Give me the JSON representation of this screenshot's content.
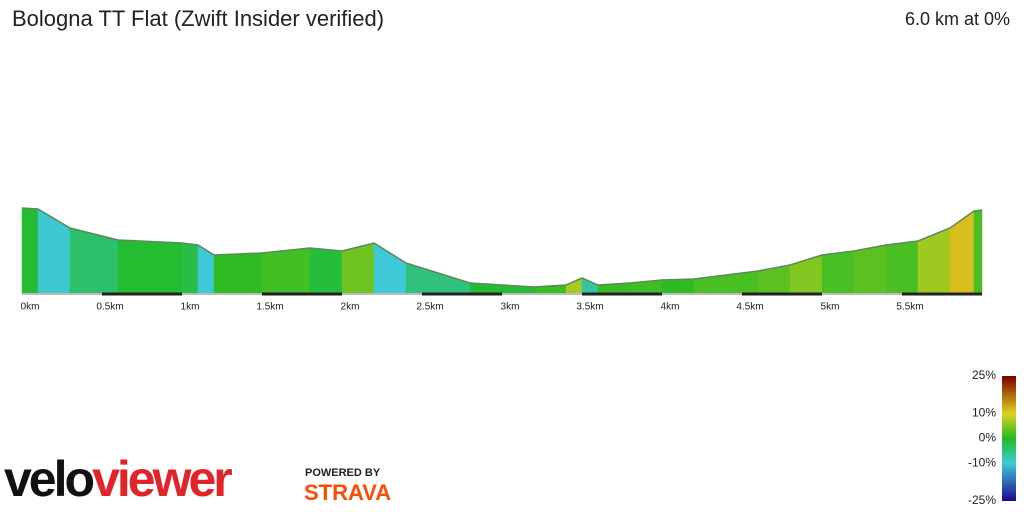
{
  "chart_data": {
    "type": "area",
    "title": "Bologna TT Flat (Zwift Insider verified)",
    "subtitle": "6.0 km at 0%",
    "x": [
      0,
      0.1,
      0.3,
      0.6,
      1.0,
      1.1,
      1.2,
      1.5,
      1.8,
      2.0,
      2.2,
      2.4,
      2.6,
      2.8,
      3.0,
      3.2,
      3.4,
      3.5,
      3.6,
      3.8,
      4.0,
      4.2,
      4.4,
      4.6,
      4.8,
      5.0,
      5.2,
      5.4,
      5.6,
      5.8,
      5.95,
      6.0
    ],
    "values": [
      85,
      84,
      65,
      53,
      50,
      48,
      38,
      40,
      45,
      42,
      50,
      30,
      20,
      10,
      8,
      6,
      8,
      15,
      8,
      10,
      13,
      14,
      18,
      22,
      28,
      38,
      42,
      48,
      52,
      65,
      82,
      83
    ],
    "xlim": [
      0,
      6.0
    ],
    "ylim": [
      0,
      100
    ],
    "xticks": [
      {
        "value": 0,
        "label": "0km"
      },
      {
        "value": 0.5,
        "label": "0.5km"
      },
      {
        "value": 1,
        "label": "1km"
      },
      {
        "value": 1.5,
        "label": "1.5km"
      },
      {
        "value": 2,
        "label": "2km"
      },
      {
        "value": 2.5,
        "label": "2.5km"
      },
      {
        "value": 3,
        "label": "3km"
      },
      {
        "value": 3.5,
        "label": "3.5km"
      },
      {
        "value": 4,
        "label": "4km"
      },
      {
        "value": 4.5,
        "label": "4.5km"
      },
      {
        "value": 5,
        "label": "5km"
      },
      {
        "value": 5.5,
        "label": "5.5km"
      }
    ],
    "colorbar": {
      "ticks": [
        {
          "value": 25,
          "label": "25%"
        },
        {
          "value": 10,
          "label": "10%"
        },
        {
          "value": 0,
          "label": "0%"
        },
        {
          "value": -10,
          "label": "-10%"
        },
        {
          "value": -25,
          "label": "-25%"
        }
      ],
      "colors": [
        "#7a0000",
        "#e0d020",
        "#22bb22",
        "#3ec8d8",
        "#1a0a8c"
      ]
    }
  },
  "branding": {
    "logo_parts": [
      "velo",
      "viewer"
    ],
    "powered_by": "POWERED BY",
    "strava": "STRAVA"
  }
}
